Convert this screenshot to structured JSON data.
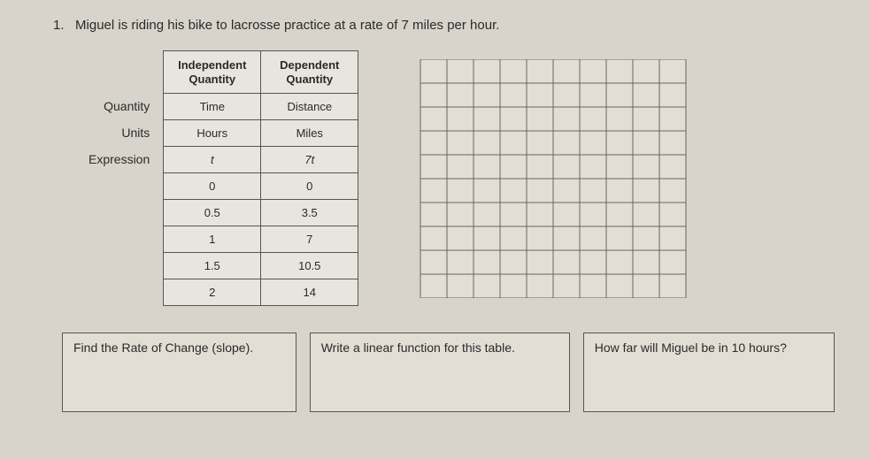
{
  "problem": {
    "number": "1.",
    "text": "Miguel is riding his bike to lacrosse practice at a rate of 7 miles per hour."
  },
  "rowLabels": {
    "quantity": "Quantity",
    "units": "Units",
    "expression": "Expression"
  },
  "table": {
    "headers": {
      "independent_line1": "Independent",
      "independent_line2": "Quantity",
      "dependent_line1": "Dependent",
      "dependent_line2": "Quantity"
    },
    "rows": [
      {
        "left": "Time",
        "right": "Distance",
        "italic": false
      },
      {
        "left": "Hours",
        "right": "Miles",
        "italic": false
      },
      {
        "left": "t",
        "right": "7t",
        "italic": true
      },
      {
        "left": "0",
        "right": "0",
        "italic": false
      },
      {
        "left": "0.5",
        "right": "3.5",
        "italic": false
      },
      {
        "left": "1",
        "right": "7",
        "italic": false
      },
      {
        "left": "1.5",
        "right": "10.5",
        "italic": false
      },
      {
        "left": "2",
        "right": "14",
        "italic": false
      }
    ]
  },
  "grid": {
    "cols": 10,
    "rows": 10,
    "line_color": "#666",
    "background": "#e2ded6"
  },
  "answerBoxes": {
    "b1": "Find the Rate of Change (slope).",
    "b2": "Write a linear function for this table.",
    "b3": "How far will Miguel be in 10 hours?"
  }
}
